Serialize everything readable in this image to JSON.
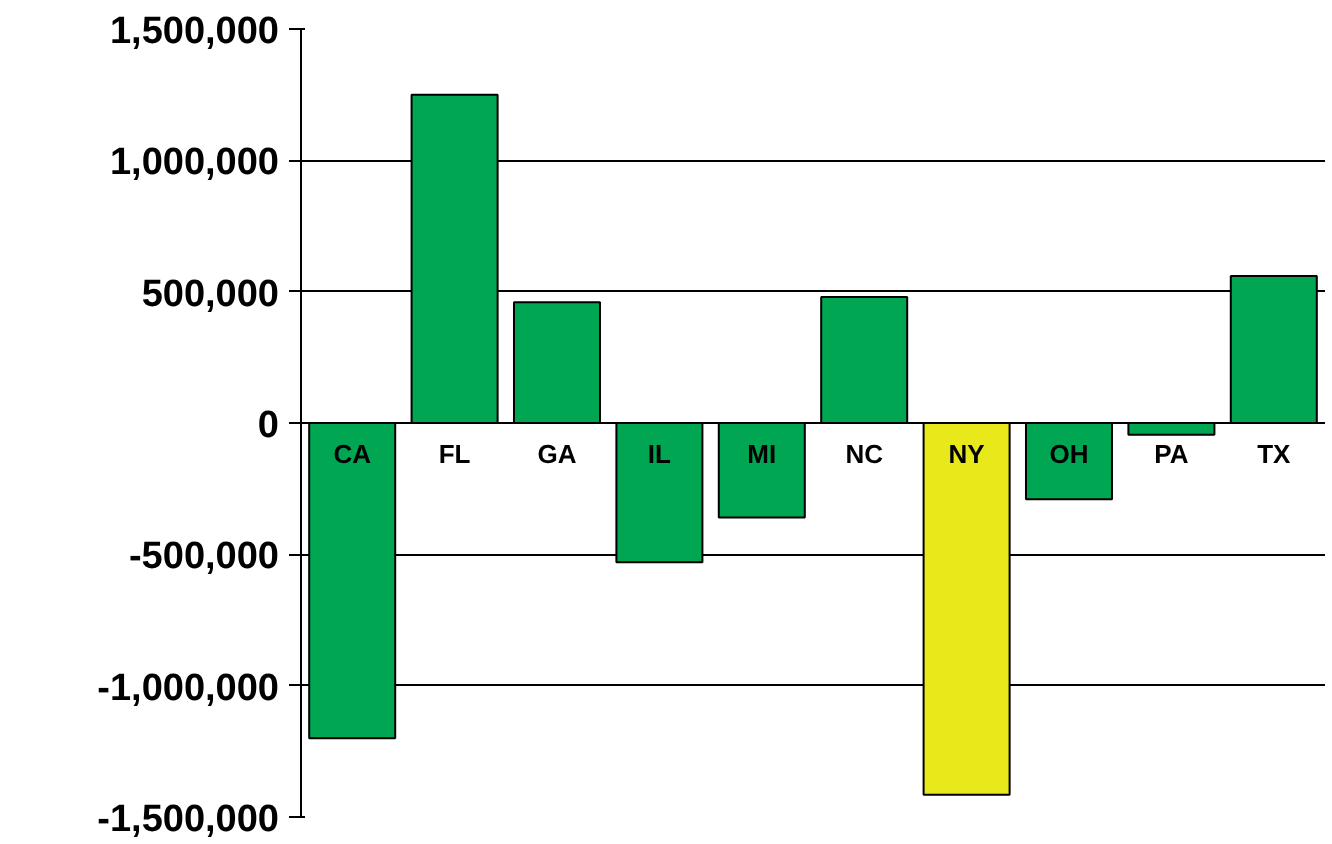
{
  "chart_data": {
    "type": "bar",
    "categories": [
      "CA",
      "FL",
      "GA",
      "IL",
      "MI",
      "NC",
      "NY",
      "OH",
      "PA",
      "TX"
    ],
    "values": [
      -1200000,
      1250000,
      460000,
      -530000,
      -360000,
      480000,
      -1415000,
      -290000,
      -45000,
      560000
    ],
    "colors": [
      "#00a651",
      "#00a651",
      "#00a651",
      "#00a651",
      "#00a651",
      "#00a651",
      "#e8e81a",
      "#00a651",
      "#00a651",
      "#00a651"
    ],
    "ylim": [
      -1500000,
      1500000
    ],
    "yticks": [
      {
        "value": -1500000,
        "label": "-1,500,000"
      },
      {
        "value": -1000000,
        "label": "-1,000,000"
      },
      {
        "value": -500000,
        "label": "-500,000"
      },
      0,
      {
        "value": 500000,
        "label": "500,000"
      },
      {
        "value": 1000000,
        "label": "1,000,000"
      },
      {
        "value": 1500000,
        "label": "1,500,000"
      }
    ],
    "grid": "y"
  }
}
